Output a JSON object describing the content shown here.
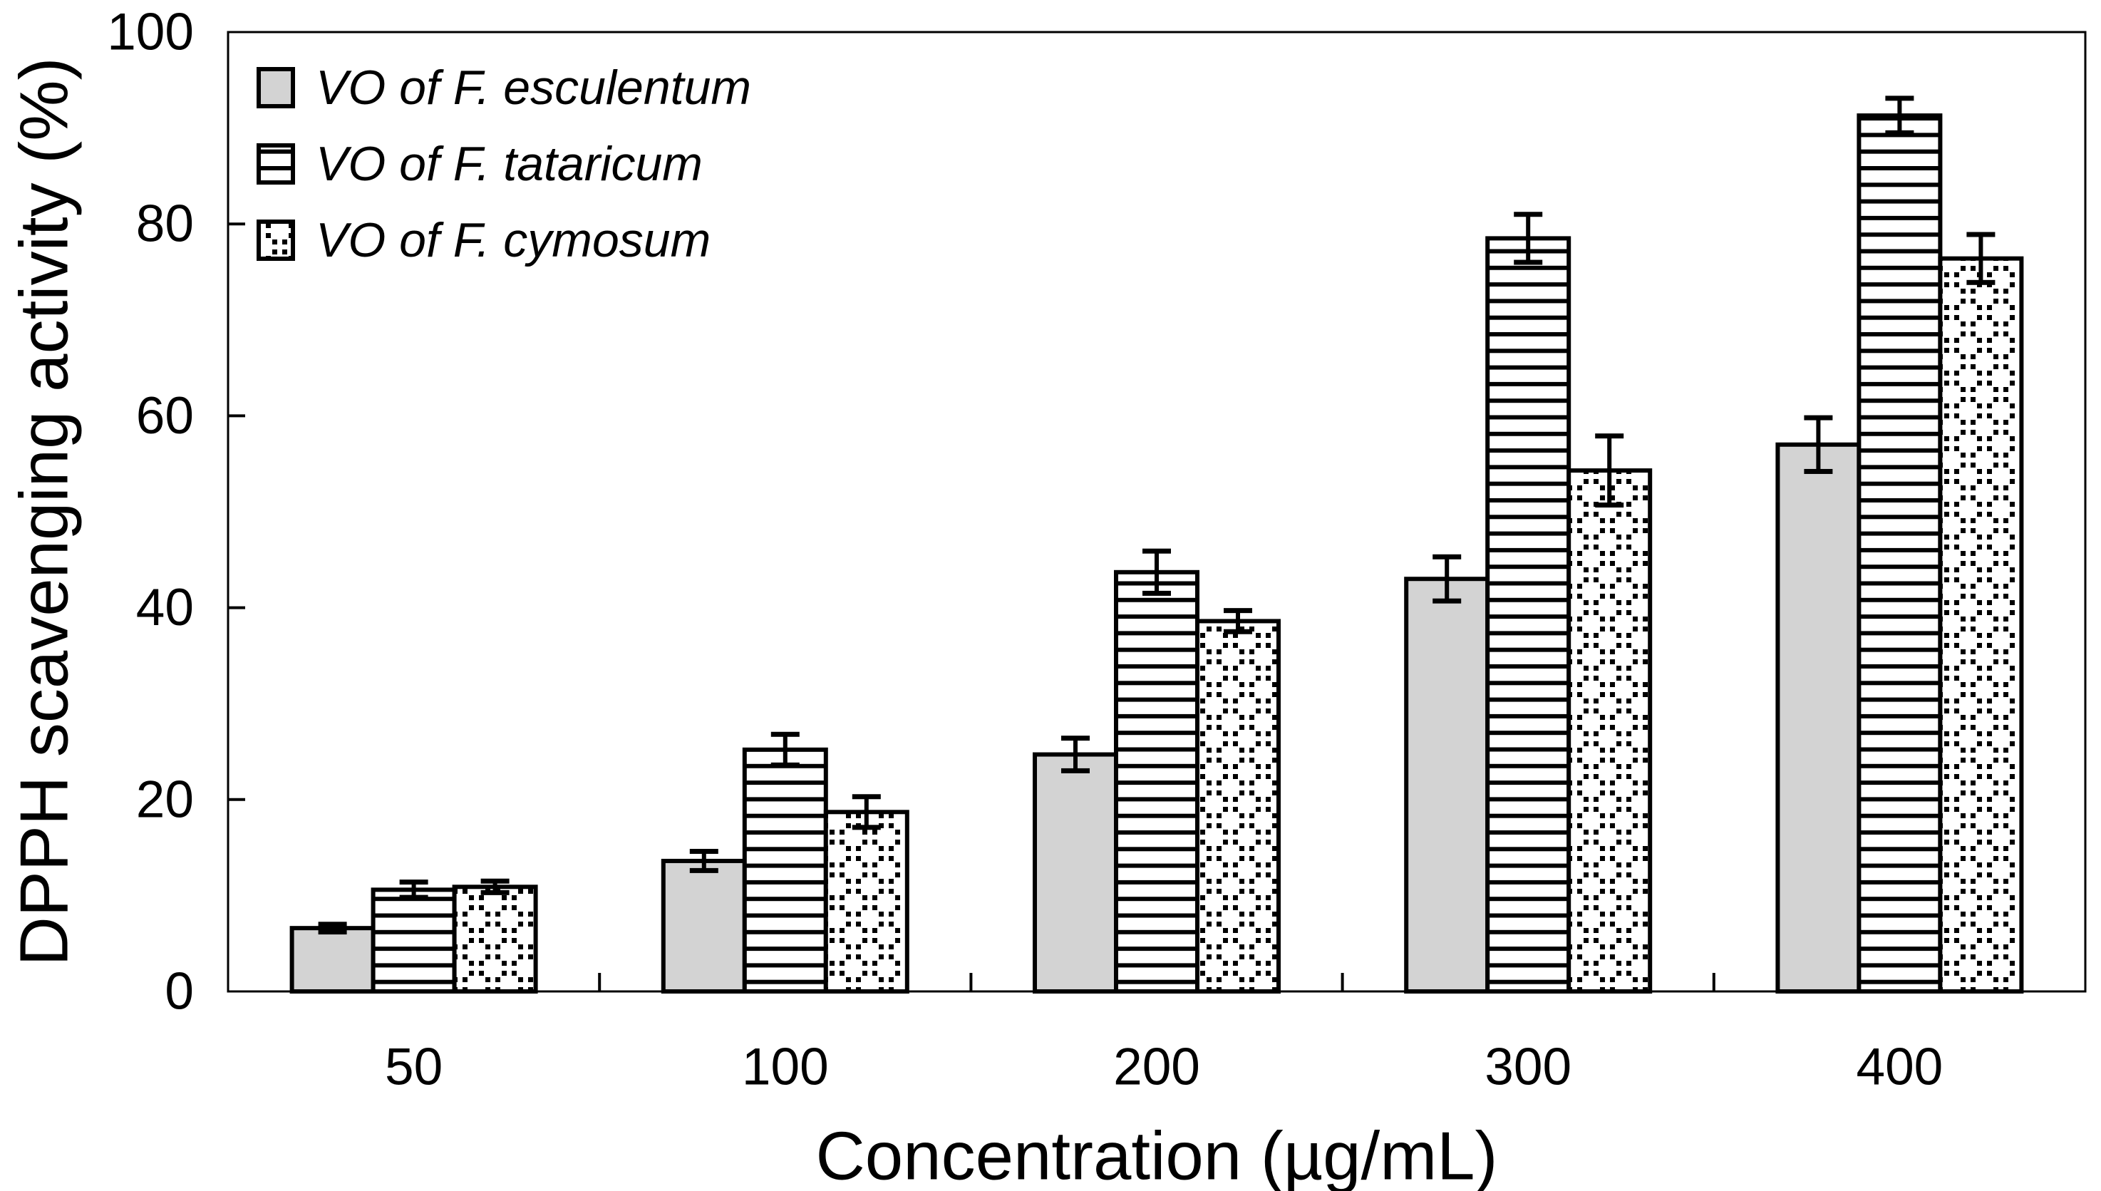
{
  "chart_data": {
    "type": "bar",
    "xlabel": "Concentration (µg/mL)",
    "ylabel": "DPPH scavenging activity (%)",
    "categories": [
      "50",
      "100",
      "200",
      "300",
      "400"
    ],
    "ylim": [
      0,
      100
    ],
    "yticks": [
      0,
      20,
      40,
      60,
      80,
      100
    ],
    "grid": false,
    "legend_position": "top-left-inside",
    "series": [
      {
        "name": "VO of F. esculentum",
        "pattern": "solid-gray",
        "fill": "#d3d3d3",
        "values": [
          6.6,
          13.6,
          24.7,
          43.0,
          57.0
        ],
        "errors": [
          0.4,
          1.0,
          1.7,
          2.3,
          2.8
        ]
      },
      {
        "name": "VO of F. tataricum",
        "pattern": "horizontal-stripes",
        "fill": "#ffffff",
        "values": [
          10.6,
          25.2,
          43.7,
          78.5,
          91.3
        ],
        "errors": [
          0.8,
          1.6,
          2.2,
          2.5,
          1.8
        ]
      },
      {
        "name": "VO of F. cymosum",
        "pattern": "dot-clusters",
        "fill": "#ffffff",
        "values": [
          10.9,
          18.7,
          38.6,
          54.3,
          76.4
        ],
        "errors": [
          0.6,
          1.6,
          1.1,
          3.6,
          2.5
        ]
      }
    ],
    "colors": {
      "bar_border": "#000000",
      "axis": "#000000",
      "text": "#000000",
      "background": "#ffffff",
      "gray_fill": "#d3d3d3"
    }
  }
}
